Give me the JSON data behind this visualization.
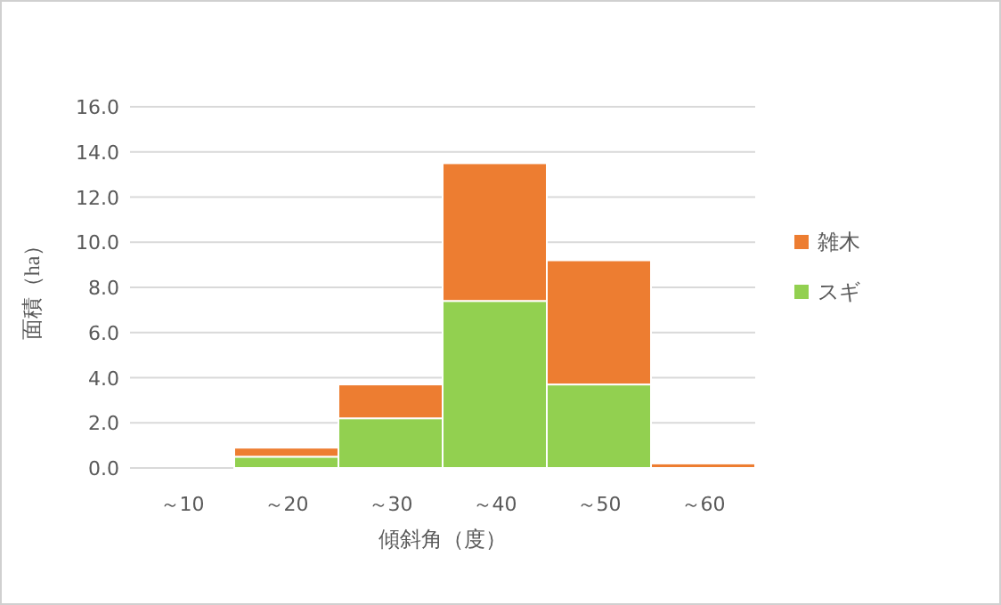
{
  "chart_data": {
    "type": "bar",
    "stacked": true,
    "xlabel": "傾斜角（度）",
    "ylabel": "面積（ha）",
    "categories": [
      "～10",
      "～20",
      "～30",
      "～40",
      "～50",
      "～60"
    ],
    "series": [
      {
        "name": "スギ",
        "color": "#92d050",
        "values": [
          0,
          0.5,
          2.2,
          7.4,
          3.7,
          0
        ]
      },
      {
        "name": "雑木",
        "color": "#ed7d31",
        "values": [
          0,
          0.4,
          1.5,
          6.1,
          5.5,
          0.2
        ]
      }
    ],
    "ylim": [
      0,
      16
    ],
    "yticks": [
      {
        "value": 0,
        "label": "0.0"
      },
      {
        "value": 2,
        "label": "2.0"
      },
      {
        "value": 4,
        "label": "4.0"
      },
      {
        "value": 6,
        "label": "6.0"
      },
      {
        "value": 8,
        "label": "8.0"
      },
      {
        "value": 10,
        "label": "10.0"
      },
      {
        "value": 12,
        "label": "12.0"
      },
      {
        "value": 14,
        "label": "14.0"
      },
      {
        "value": 16,
        "label": "16.0"
      }
    ],
    "grid": "y",
    "legend": "right"
  }
}
